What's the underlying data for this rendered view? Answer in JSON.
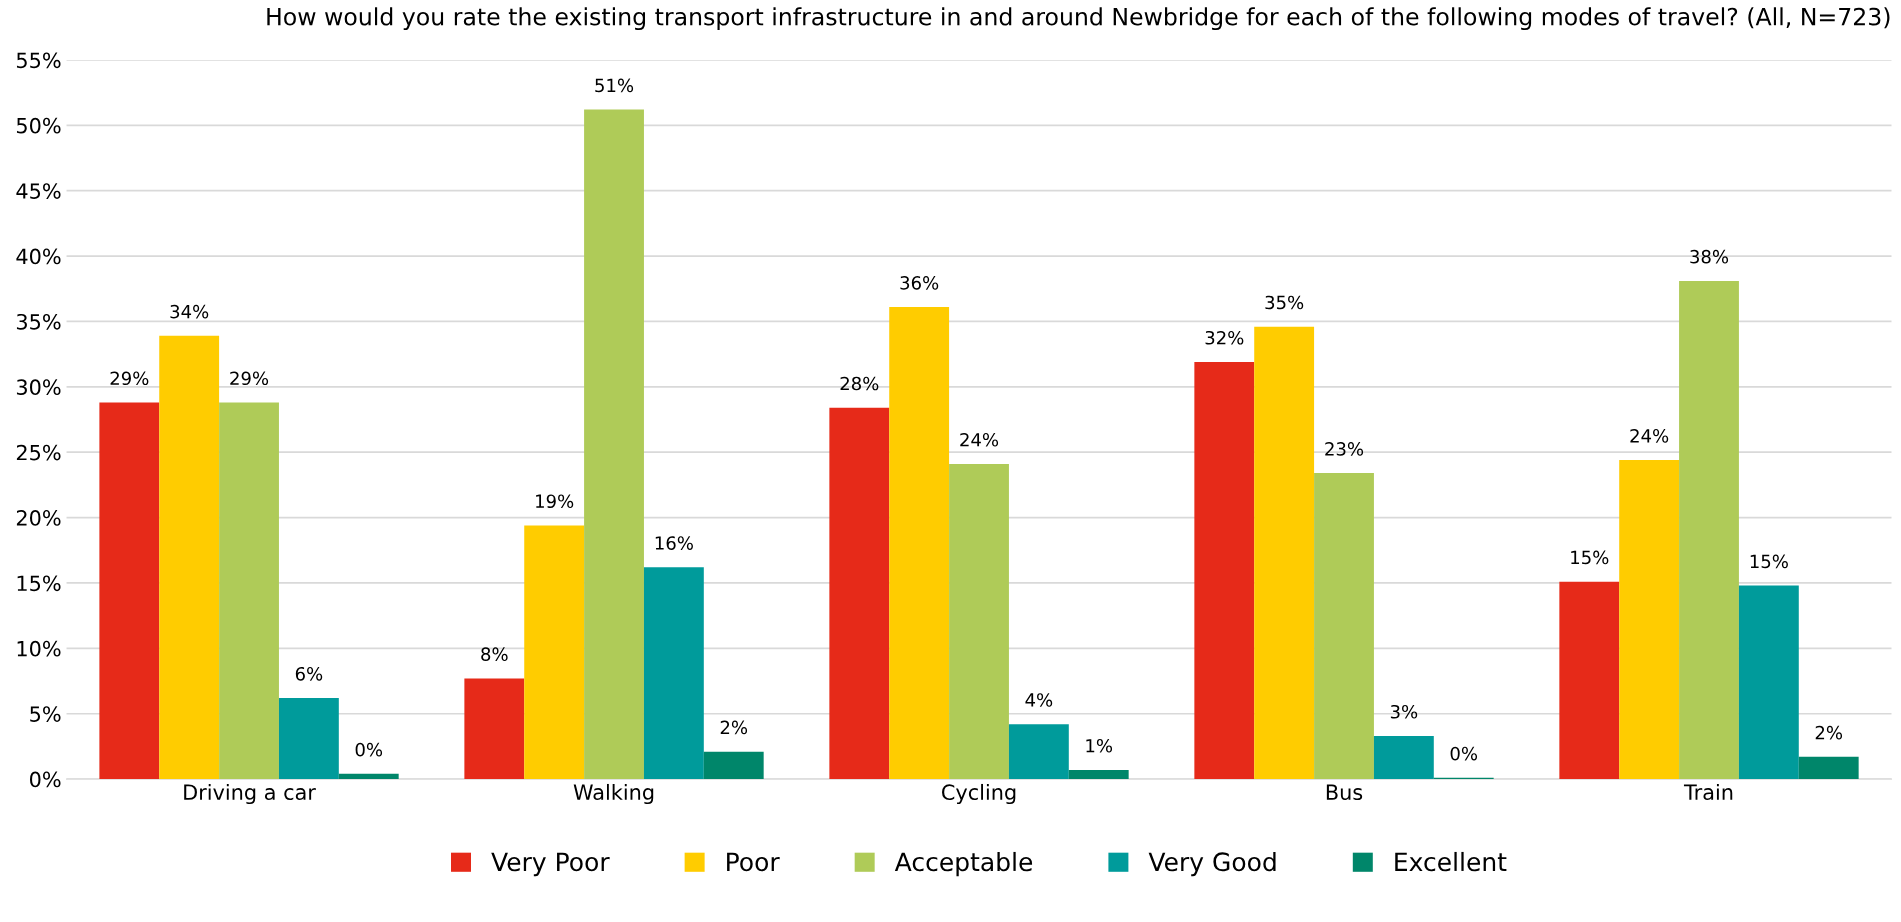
{
  "chart_data": {
    "type": "bar",
    "title": "How would you rate the existing transport infrastructure in and around Newbridge for each of the following modes of travel? (All, N=723)",
    "categories": [
      "Driving a car",
      "Walking",
      "Cycling",
      "Bus",
      "Train"
    ],
    "series": [
      {
        "name": "Very Poor",
        "color": "#e62a19",
        "values": [
          28.8,
          7.7,
          28.4,
          31.9,
          15.1
        ],
        "value_labels": [
          "29%",
          "8%",
          "28%",
          "32%",
          "15%"
        ]
      },
      {
        "name": "Poor",
        "color": "#ffcc00",
        "values": [
          33.9,
          19.4,
          36.1,
          34.6,
          24.4
        ],
        "value_labels": [
          "34%",
          "19%",
          "36%",
          "35%",
          "24%"
        ]
      },
      {
        "name": "Acceptable",
        "color": "#afcb58",
        "values": [
          28.8,
          51.2,
          24.1,
          23.4,
          38.1
        ],
        "value_labels": [
          "29%",
          "51%",
          "24%",
          "23%",
          "38%"
        ]
      },
      {
        "name": "Very Good",
        "color": "#009b9b",
        "values": [
          6.2,
          16.2,
          4.2,
          3.3,
          14.8
        ],
        "value_labels": [
          "6%",
          "16%",
          "4%",
          "3%",
          "15%"
        ]
      },
      {
        "name": "Excellent",
        "color": "#00866a",
        "values": [
          0.4,
          2.1,
          0.7,
          0.1,
          1.7
        ],
        "value_labels": [
          "0%",
          "2%",
          "1%",
          "0%",
          "2%"
        ]
      }
    ],
    "ylim": [
      0,
      55
    ],
    "yticks": [
      {
        "value": 0,
        "label": "0%"
      },
      {
        "value": 5,
        "label": "5%"
      },
      {
        "value": 10,
        "label": "10%"
      },
      {
        "value": 15,
        "label": "15%"
      },
      {
        "value": 20,
        "label": "20%"
      },
      {
        "value": 25,
        "label": "25%"
      },
      {
        "value": 30,
        "label": "30%"
      },
      {
        "value": 35,
        "label": "35%"
      },
      {
        "value": 40,
        "label": "40%"
      },
      {
        "value": 45,
        "label": "45%"
      },
      {
        "value": 50,
        "label": "50%"
      },
      {
        "value": 55,
        "label": "55%"
      }
    ],
    "grid": "y",
    "legend": "bottom"
  }
}
